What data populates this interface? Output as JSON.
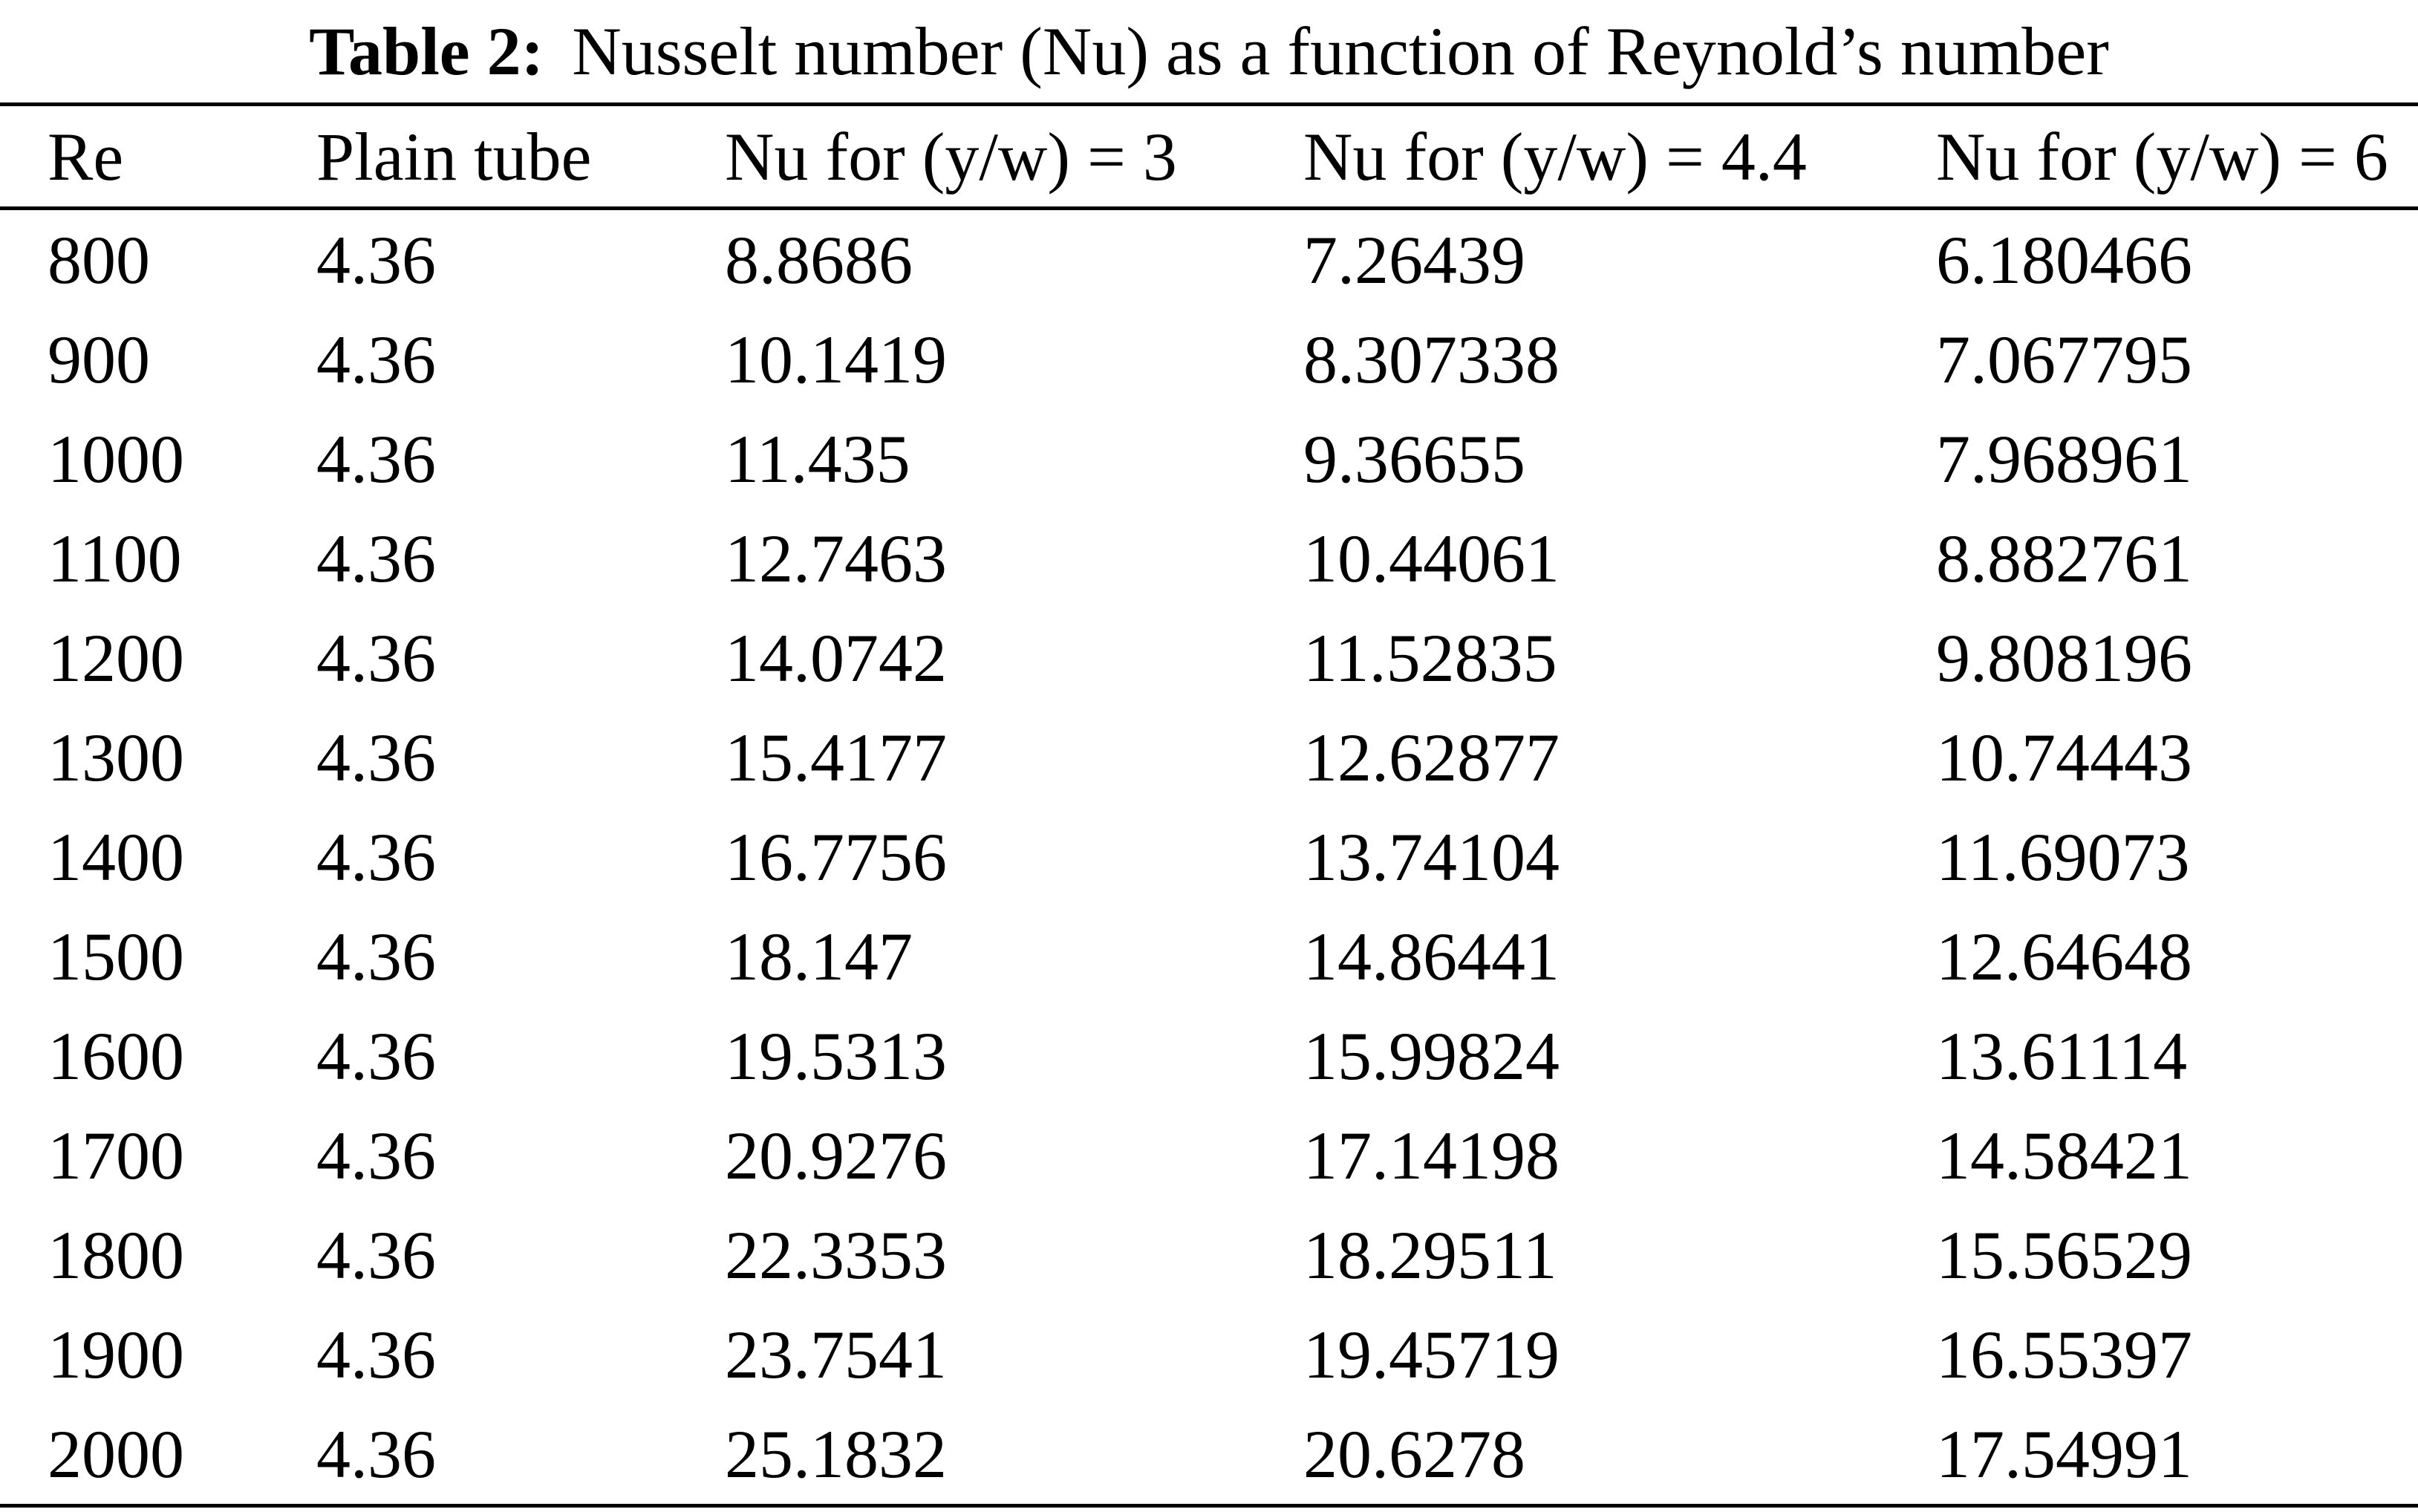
{
  "caption": {
    "label": "Table 2:",
    "text": "Nusselt number (Nu) as a function of Reynold’s number"
  },
  "table": {
    "headers": [
      "Re",
      "Plain tube",
      "Nu for (y/w) = 3",
      "Nu for (y/w) = 4.4",
      "Nu for (y/w) = 6"
    ],
    "rows": [
      [
        "800",
        "4.36",
        "8.8686",
        "7.26439",
        "6.180466"
      ],
      [
        "900",
        "4.36",
        "10.1419",
        "8.307338",
        "7.067795"
      ],
      [
        "1000",
        "4.36",
        "11.435",
        "9.36655",
        "7.968961"
      ],
      [
        "1100",
        "4.36",
        "12.7463",
        "10.44061",
        "8.882761"
      ],
      [
        "1200",
        "4.36",
        "14.0742",
        "11.52835",
        "9.808196"
      ],
      [
        "1300",
        "4.36",
        "15.4177",
        "12.62877",
        "10.74443"
      ],
      [
        "1400",
        "4.36",
        "16.7756",
        "13.74104",
        "11.69073"
      ],
      [
        "1500",
        "4.36",
        "18.147",
        "14.86441",
        "12.64648"
      ],
      [
        "1600",
        "4.36",
        "19.5313",
        "15.99824",
        "13.61114"
      ],
      [
        "1700",
        "4.36",
        "20.9276",
        "17.14198",
        "14.58421"
      ],
      [
        "1800",
        "4.36",
        "22.3353",
        "18.29511",
        "15.56529"
      ],
      [
        "1900",
        "4.36",
        "23.7541",
        "19.45719",
        "16.55397"
      ],
      [
        "2000",
        "4.36",
        "25.1832",
        "20.6278",
        "17.54991"
      ]
    ]
  },
  "colors": {
    "text": "#000000",
    "background": "#ffffff",
    "rule": "#000000"
  }
}
